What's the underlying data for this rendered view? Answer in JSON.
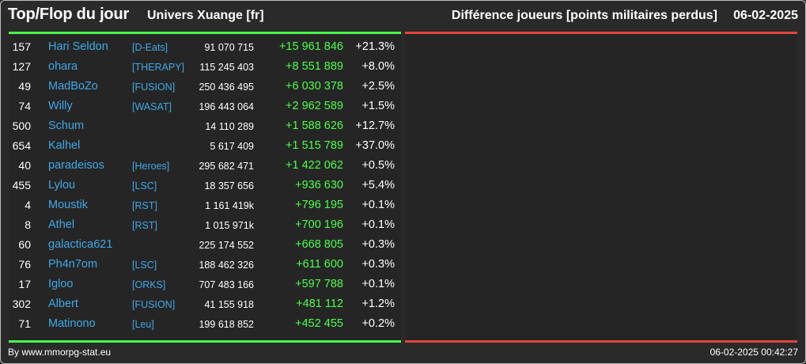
{
  "header": {
    "title": "Top/Flop du jour",
    "universe": "Univers Xuange [fr]",
    "metric": "Différence joueurs [points militaires perdus]",
    "date": "06-02-2025"
  },
  "colors": {
    "top_accent": "#4cff4c",
    "flop_accent": "#e3443d",
    "link": "#3fa9e8"
  },
  "top_rows": [
    {
      "rank": "157",
      "name": "Hari Seldon",
      "ally": "[D-Eats]",
      "points": "91 070 715",
      "diff": "+15 961 846",
      "pct": "+21.3%"
    },
    {
      "rank": "127",
      "name": "ohara",
      "ally": "[THERAPY]",
      "points": "115 245 403",
      "diff": "+8 551 889",
      "pct": "+8.0%"
    },
    {
      "rank": "49",
      "name": "MadBoZo",
      "ally": "[FUSION]",
      "points": "250 436 495",
      "diff": "+6 030 378",
      "pct": "+2.5%"
    },
    {
      "rank": "74",
      "name": "Willy",
      "ally": "[WASAT]",
      "points": "196 443 064",
      "diff": "+2 962 589",
      "pct": "+1.5%"
    },
    {
      "rank": "500",
      "name": "Schum",
      "ally": "",
      "points": "14 110 289",
      "diff": "+1 588 626",
      "pct": "+12.7%"
    },
    {
      "rank": "654",
      "name": "Kalhel",
      "ally": "",
      "points": "5 617 409",
      "diff": "+1 515 789",
      "pct": "+37.0%"
    },
    {
      "rank": "40",
      "name": "paradeisos",
      "ally": "[Heroes]",
      "points": "295 682 471",
      "diff": "+1 422 062",
      "pct": "+0.5%"
    },
    {
      "rank": "455",
      "name": "Lylou",
      "ally": "[LSC]",
      "points": "18 357 656",
      "diff": "+936 630",
      "pct": "+5.4%"
    },
    {
      "rank": "4",
      "name": "Moustik",
      "ally": "[RST]",
      "points": "1 161 419k",
      "diff": "+796 195",
      "pct": "+0.1%"
    },
    {
      "rank": "8",
      "name": "Athel",
      "ally": "[RST]",
      "points": "1 015 971k",
      "diff": "+700 196",
      "pct": "+0.1%"
    },
    {
      "rank": "60",
      "name": "galactica621",
      "ally": "",
      "points": "225 174 552",
      "diff": "+668 805",
      "pct": "+0.3%"
    },
    {
      "rank": "76",
      "name": "Ph4n7om",
      "ally": "[LSC]",
      "points": "188 462 326",
      "diff": "+611 600",
      "pct": "+0.3%"
    },
    {
      "rank": "17",
      "name": "Igloo",
      "ally": "[ORKS]",
      "points": "707 483 166",
      "diff": "+597 788",
      "pct": "+0.1%"
    },
    {
      "rank": "302",
      "name": "Albert",
      "ally": "[FUSION]",
      "points": "41 155 918",
      "diff": "+481 112",
      "pct": "+1.2%"
    },
    {
      "rank": "71",
      "name": "Matinono",
      "ally": "[Leu]",
      "points": "199 618 852",
      "diff": "+452 455",
      "pct": "+0.2%"
    }
  ],
  "footer": {
    "credit": "By www.mmorpg-stat.eu",
    "timestamp": "06-02-2025 00:42:27"
  }
}
